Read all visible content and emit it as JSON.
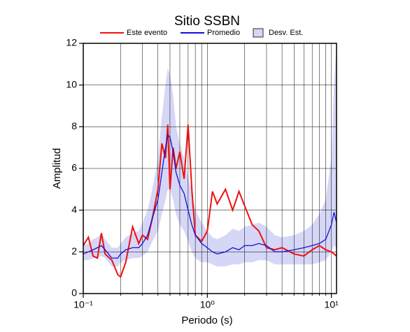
{
  "chart_data": {
    "type": "line",
    "title": "Sitio SSBN",
    "xlabel": "Periodo (s)",
    "ylabel": "Amplitud",
    "xscale": "log",
    "grid": true,
    "xlim": [
      0.1,
      11
    ],
    "ylim": [
      0,
      12
    ],
    "xticks": [
      {
        "value": 0.1,
        "label": "10⁻¹"
      },
      {
        "value": 1,
        "label": "10⁰"
      },
      {
        "value": 10,
        "label": "10¹"
      }
    ],
    "xminorticks": [
      0.2,
      0.3,
      0.4,
      0.5,
      0.6,
      0.7,
      0.8,
      0.9,
      2,
      3,
      4,
      5,
      6,
      7,
      8,
      9
    ],
    "yticks": [
      0,
      2,
      4,
      6,
      8,
      10,
      12
    ],
    "x": [
      0.1,
      0.11,
      0.12,
      0.13,
      0.14,
      0.15,
      0.17,
      0.19,
      0.2,
      0.22,
      0.25,
      0.28,
      0.3,
      0.33,
      0.36,
      0.4,
      0.43,
      0.46,
      0.48,
      0.5,
      0.53,
      0.56,
      0.6,
      0.65,
      0.7,
      0.75,
      0.8,
      0.9,
      1.0,
      1.1,
      1.2,
      1.4,
      1.6,
      1.8,
      2.0,
      2.3,
      2.6,
      3.0,
      3.5,
      4,
      5,
      6,
      7,
      8,
      9,
      10,
      10.5,
      11
    ],
    "series": [
      {
        "name": "Este evento",
        "color": "#ee1111",
        "values": [
          2.3,
          2.7,
          1.8,
          1.7,
          2.9,
          1.9,
          1.6,
          0.9,
          0.8,
          1.5,
          3.2,
          2.4,
          2.8,
          2.6,
          3.6,
          5.0,
          7.2,
          6.5,
          8.1,
          5.0,
          7.0,
          6.0,
          6.8,
          5.5,
          8.1,
          5.0,
          2.8,
          2.5,
          3.0,
          4.9,
          4.3,
          5.0,
          4.0,
          4.9,
          4.2,
          3.3,
          3.0,
          2.2,
          2.1,
          2.2,
          1.9,
          1.8,
          2.1,
          2.3,
          2.1,
          2.0,
          1.9,
          1.8
        ]
      },
      {
        "name": "Promedio",
        "color": "#1111dd",
        "values": [
          1.9,
          2.0,
          2.1,
          2.2,
          2.3,
          2.1,
          1.7,
          1.7,
          1.9,
          2.1,
          2.2,
          2.2,
          2.4,
          2.8,
          3.6,
          4.5,
          5.8,
          7.0,
          7.6,
          7.5,
          6.8,
          5.8,
          5.2,
          4.8,
          4.0,
          3.3,
          2.8,
          2.4,
          2.2,
          2.0,
          1.9,
          2.0,
          2.2,
          2.1,
          2.3,
          2.3,
          2.4,
          2.3,
          2.0,
          2.0,
          2.1,
          2.2,
          2.3,
          2.4,
          2.6,
          3.3,
          3.9,
          3.4
        ]
      },
      {
        "name": "Desv. Est.",
        "color": "#d6d6f6",
        "lower": [
          1.6,
          1.6,
          1.7,
          1.7,
          1.8,
          1.7,
          1.3,
          1.3,
          1.5,
          1.6,
          1.7,
          1.7,
          1.8,
          2.0,
          2.5,
          3.0,
          3.8,
          4.5,
          5.0,
          5.0,
          4.5,
          3.8,
          3.3,
          3.0,
          2.5,
          2.0,
          1.7,
          1.5,
          1.5,
          1.4,
          1.3,
          1.3,
          1.4,
          1.4,
          1.5,
          1.5,
          1.6,
          1.6,
          1.4,
          1.4,
          1.4,
          1.4,
          1.4,
          1.5,
          1.6,
          2.0,
          2.3,
          2.2
        ],
        "upper": [
          2.3,
          2.4,
          2.6,
          2.7,
          2.9,
          2.6,
          2.2,
          2.2,
          2.4,
          2.7,
          2.9,
          3.0,
          3.4,
          4.0,
          5.0,
          6.5,
          8.5,
          10.0,
          10.8,
          10.5,
          9.5,
          8.0,
          7.2,
          6.5,
          5.6,
          4.8,
          4.0,
          3.4,
          3.0,
          2.7,
          2.6,
          2.8,
          3.1,
          3.0,
          3.2,
          3.3,
          3.4,
          3.2,
          2.8,
          2.7,
          2.8,
          3.0,
          3.3,
          3.8,
          4.5,
          6.5,
          10,
          12
        ]
      }
    ]
  }
}
